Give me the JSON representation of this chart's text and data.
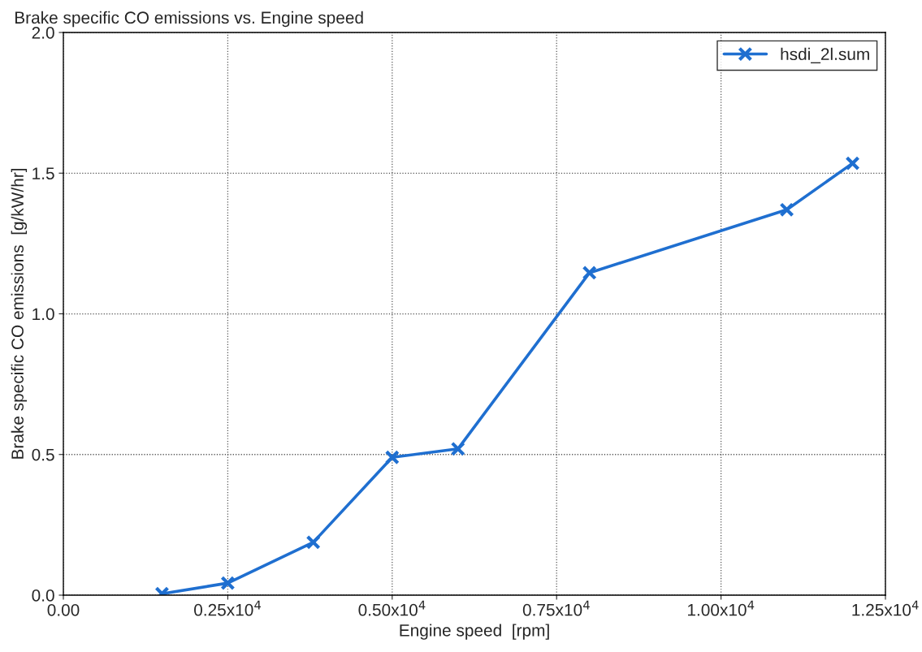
{
  "chart_data": {
    "type": "line",
    "title": "Brake specific CO emissions vs. Engine speed",
    "xlabel": "Engine speed  [rpm]",
    "ylabel": "Brake specific CO emissions  [g/kW/hr]",
    "x": [
      1500,
      2500,
      3800,
      5000,
      6000,
      8000,
      11000,
      12000
    ],
    "series": [
      {
        "name": "hsdi_2l.sum",
        "color": "#1f6fd0",
        "values": [
          0.005,
          0.043,
          0.188,
          0.49,
          0.52,
          1.146,
          1.37,
          1.535
        ]
      }
    ],
    "xlim": [
      0,
      12500
    ],
    "ylim": [
      0,
      2.0
    ],
    "xticks": [
      {
        "value": 0,
        "label": "0.00"
      },
      {
        "value": 2500,
        "label": "0.25x10$^{4}$"
      },
      {
        "value": 5000,
        "label": "0.50x10$^{4}$"
      },
      {
        "value": 7500,
        "label": "0.75x10$^{4}$"
      },
      {
        "value": 10000,
        "label": "1.00x10$^{4}$"
      },
      {
        "value": 12500,
        "label": "1.25x10$^{4}$"
      }
    ],
    "yticks": [
      {
        "value": 0,
        "label": "0.0"
      },
      {
        "value": 0.5,
        "label": "0.5"
      },
      {
        "value": 1.0,
        "label": "1.0"
      },
      {
        "value": 1.5,
        "label": "1.5"
      },
      {
        "value": 2.0,
        "label": "2.0"
      }
    ],
    "grid": true,
    "legend": "top right",
    "marker": "cross",
    "line_style": "solid"
  }
}
